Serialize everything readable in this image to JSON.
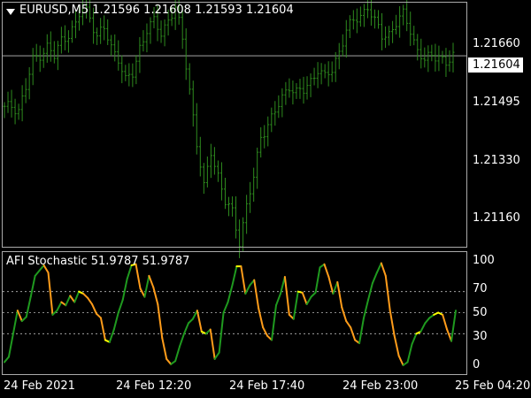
{
  "symbol_header": {
    "text": "EURUSD,M5  1.21596 1.21608 1.21593 1.21604"
  },
  "price_axis": {
    "labels": [
      "1.21660",
      "1.21495",
      "1.21330",
      "1.21160"
    ],
    "current": "1.21604"
  },
  "indicator": {
    "title": "AFI Stochastic 51.9787 51.9787",
    "levels": [
      "100",
      "70",
      "50",
      "30",
      "0"
    ]
  },
  "time_axis": {
    "labels": [
      "24 Feb 2021",
      "24 Feb 12:20",
      "24 Feb 17:40",
      "24 Feb 23:00",
      "25 Feb 04:20"
    ]
  },
  "colors": {
    "background": "#000000",
    "candles": "#2e8b1e",
    "osc_up": "#1f9a1f",
    "osc_down": "#ff9c1a",
    "osc_flat": "#ffff00",
    "grid": "#bbbbbb"
  },
  "chart_data": [
    {
      "type": "bar",
      "title": "EURUSD,M5  1.21596 1.21608 1.21593 1.21604",
      "ylim": [
        1.2105,
        1.2176
      ],
      "x_ticks": [
        "24 Feb 2021",
        "24 Feb 12:20",
        "24 Feb 17:40",
        "24 Feb 23:00",
        "25 Feb 04:20"
      ],
      "y_ticks": [
        1.2166,
        1.21495,
        1.2133,
        1.2116
      ],
      "current_price": 1.21604,
      "bar_count": 127,
      "close_path": [
        1.2145,
        1.2146,
        1.2145,
        1.2151,
        1.2159,
        1.2161,
        1.2163,
        1.216,
        1.2165,
        1.2167,
        1.2169,
        1.2175,
        1.2172,
        1.2166,
        1.2168,
        1.2163,
        1.216,
        1.2153,
        1.2155,
        1.2163,
        1.2168,
        1.217,
        1.2167,
        1.2171,
        1.2174,
        1.2165,
        1.2151,
        1.2135,
        1.2122,
        1.2133,
        1.2126,
        1.2118,
        1.2115,
        1.2107,
        1.2117,
        1.2125,
        1.2137,
        1.2141,
        1.2144,
        1.2148,
        1.2152,
        1.215,
        1.215,
        1.2153,
        1.2157,
        1.2154,
        1.2156,
        1.2162,
        1.2168,
        1.217,
        1.2172,
        1.2175,
        1.217,
        1.2166,
        1.2167,
        1.217,
        1.2172,
        1.2168,
        1.2162,
        1.2159,
        1.216,
        1.2161,
        1.2158,
        1.216
      ]
    },
    {
      "type": "line",
      "title": "AFI Stochastic 51.9787 51.9787",
      "ylim": [
        0,
        100
      ],
      "levels": [
        70,
        50,
        30
      ],
      "y_ticks": [
        0,
        30,
        50,
        70,
        100
      ],
      "series": [
        {
          "values": [
            3,
            8,
            30,
            52,
            42,
            46,
            65,
            85,
            90,
            95,
            88,
            48,
            52,
            60,
            57,
            66,
            60,
            70,
            68,
            64,
            58,
            49,
            45,
            24,
            22,
            34,
            50,
            62,
            82,
            95,
            96,
            73,
            65,
            85,
            74,
            58,
            26,
            6,
            1,
            4,
            18,
            30,
            40,
            44,
            52,
            32,
            30,
            34,
            6,
            12,
            50,
            60,
            76,
            94,
            94,
            68,
            76,
            81,
            54,
            36,
            28,
            24,
            57,
            68,
            84,
            48,
            44,
            70,
            69,
            58,
            65,
            69,
            93,
            96,
            84,
            68,
            79,
            55,
            42,
            36,
            24,
            21,
            45,
            62,
            78,
            88,
            97,
            85,
            52,
            28,
            9,
            0,
            3,
            20,
            30,
            32,
            40,
            45,
            48,
            50,
            48,
            34,
            23,
            52
          ]
        }
      ]
    }
  ]
}
